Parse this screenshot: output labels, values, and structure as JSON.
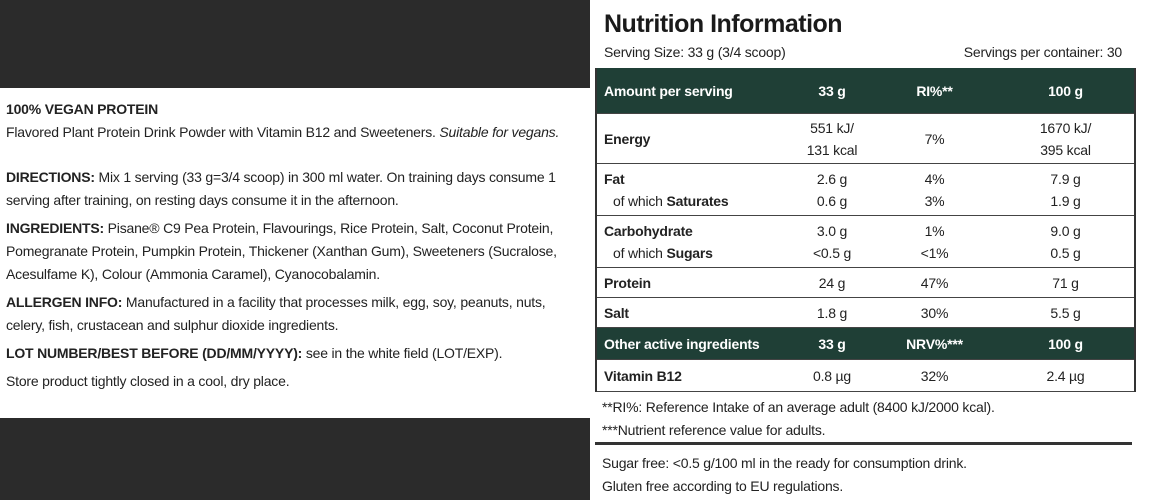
{
  "label_text": {
    "heading": "100% VEGAN PROTEIN",
    "description": "Flavored Plant Protein Drink Powder with Vitamin B12 and Sweeteners.",
    "description_note": "Suitable for vegans.",
    "sections": [
      {
        "label": "DIRECTIONS:",
        "text": "Mix 1 serving (33 g=3/4 scoop) in 300 ml water. On training days consume 1 serving after training, on resting days consume it in the afternoon."
      },
      {
        "label": "INGREDIENTS:",
        "text": "Pisane® C9 Pea Protein, Flavourings, Rice Protein, Salt, Coconut Protein, Pomegranate Protein, Pumpkin Protein, Thickener (Xanthan Gum), Sweeteners (Sucralose, Acesulfame K), Colour (Ammonia Caramel), Cyanocobalamin."
      },
      {
        "label": "ALLERGEN INFO:",
        "text": "Manufactured in a facility that processes milk, egg, soy, peanuts, nuts, celery, fish, crustacean and sulphur dioxide ingredients."
      },
      {
        "label": "LOT NUMBER/BEST BEFORE (DD/MM/YYYY):",
        "text": "see in the white field (LOT/EXP)."
      }
    ],
    "storage": "Store product tightly closed in a cool, dry place."
  },
  "nutrition": {
    "title": "Nutrition Information",
    "serving_size": "Serving Size: 33 g (3/4 scoop)",
    "servings_per_container": "Servings per container: 30",
    "groups": [
      {
        "header": true,
        "cells": [
          [
            "Amount per serving"
          ],
          [
            "33 g"
          ],
          [
            "RI%**"
          ],
          [
            "100 g"
          ]
        ]
      },
      {
        "cells": [
          [
            "Energy"
          ],
          [
            "551 kJ/",
            "131 kcal"
          ],
          [
            "7%"
          ],
          [
            "1670 kJ/",
            "395 kcal"
          ]
        ]
      },
      {
        "cells": [
          [
            "Fat",
            {
              "prefix": "of which",
              "bold": "Saturates"
            }
          ],
          [
            "2.6 g",
            "0.6 g"
          ],
          [
            "4%",
            "3%"
          ],
          [
            "7.9 g",
            "1.9 g"
          ]
        ]
      },
      {
        "cells": [
          [
            "Carbohydrate",
            {
              "prefix": "of which",
              "bold": "Sugars"
            }
          ],
          [
            "3.0 g",
            "<0.5 g"
          ],
          [
            "1%",
            "<1%"
          ],
          [
            "9.0 g",
            "0.5 g"
          ]
        ]
      },
      {
        "cells": [
          [
            "Protein"
          ],
          [
            "24 g"
          ],
          [
            "47%"
          ],
          [
            "71 g"
          ]
        ]
      },
      {
        "cells": [
          [
            "Salt"
          ],
          [
            "1.8 g"
          ],
          [
            "30%"
          ],
          [
            "5.5 g"
          ]
        ]
      },
      {
        "header": true,
        "cells": [
          [
            "Other active ingredients"
          ],
          [
            "33 g"
          ],
          [
            "NRV%***"
          ],
          [
            "100 g"
          ]
        ]
      },
      {
        "cells": [
          [
            "Vitamin B12"
          ],
          [
            "0.8 µg"
          ],
          [
            "32%"
          ],
          [
            "2.4 µg"
          ]
        ]
      }
    ],
    "footnotes": [
      "**RI%: Reference Intake of an average adult (8400 kJ/2000 kcal).",
      "***Nutrient reference value for adults."
    ],
    "notes": [
      "Sugar free: <0.5 g/100 ml in the ready for consumption drink.",
      "Gluten free according to EU regulations."
    ]
  }
}
